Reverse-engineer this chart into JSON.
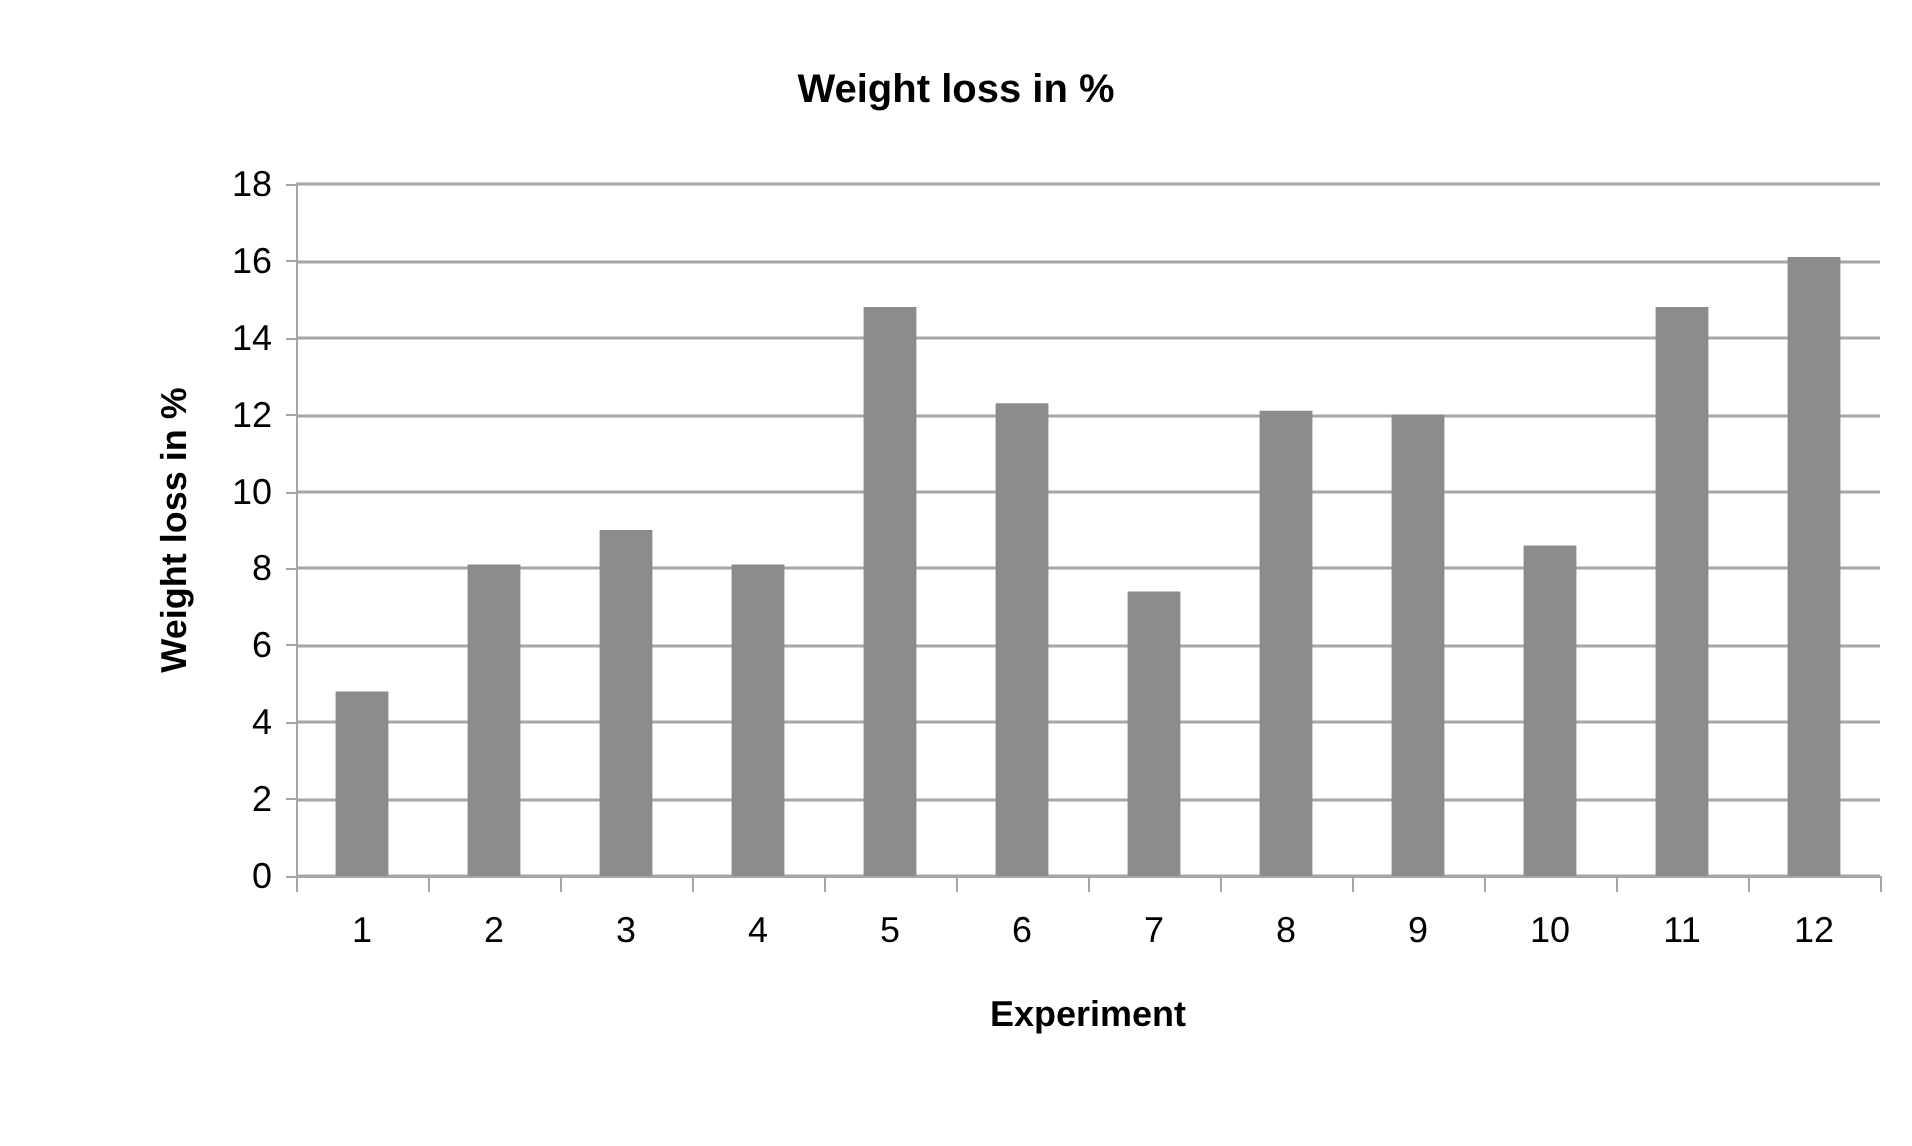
{
  "chart_data": {
    "type": "bar",
    "title": "Weight loss in %",
    "xlabel": "Experiment",
    "ylabel": "Weight loss in %",
    "categories": [
      "1",
      "2",
      "3",
      "4",
      "5",
      "6",
      "7",
      "8",
      "9",
      "10",
      "11",
      "12"
    ],
    "values": [
      4.8,
      8.1,
      9.0,
      8.1,
      14.8,
      12.3,
      7.4,
      12.1,
      12.0,
      8.6,
      14.8,
      16.1
    ],
    "color": "#8c8c8c",
    "ylim": [
      0,
      18
    ],
    "yticks": [
      0,
      2,
      4,
      6,
      8,
      10,
      12,
      14,
      16,
      18
    ],
    "grid": "y"
  }
}
